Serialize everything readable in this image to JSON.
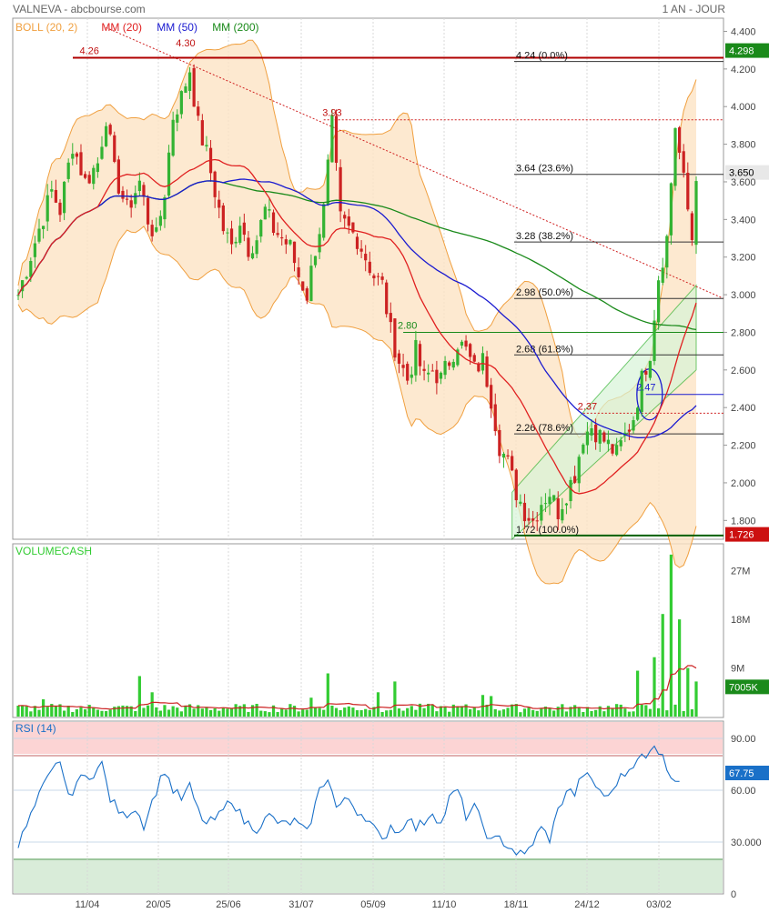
{
  "header": {
    "title": "VALNEVA - abcbourse.com",
    "period": "1 AN - JOUR"
  },
  "colors": {
    "up": "#33b333",
    "down": "#cc2222",
    "mm20": "#e02020",
    "mm50": "#1a1ad0",
    "mm200": "#1a8a1a",
    "boll": "#f0a040",
    "bollFill": "#fde3c4",
    "rsi": "#1a70c8",
    "volume": "#33cc33"
  },
  "chart_data": [
    {
      "type": "candlestick",
      "panel": "price",
      "legend": [
        {
          "label": "BOLL (20, 2)",
          "color": "#f0a040"
        },
        {
          "label": "MM (20)",
          "color": "#e02020"
        },
        {
          "label": "MM (50)",
          "color": "#1a1ad0"
        },
        {
          "label": "MM (200)",
          "color": "#1a8a1a"
        }
      ],
      "ylim": [
        1.7,
        4.47
      ],
      "yticks": [
        "4.400",
        "4.200",
        "4.000",
        "3.800",
        "3.600",
        "3.400",
        "3.200",
        "3.000",
        "2.800",
        "2.600",
        "2.400",
        "2.200",
        "2.000",
        "1.800"
      ],
      "xticks": [
        "11/04",
        "20/05",
        "25/06",
        "31/07",
        "05/09",
        "11/10",
        "18/11",
        "24/12",
        "03/02"
      ],
      "last_price": "3.650",
      "high_badge": "4.298",
      "low_badge": "1.726",
      "price_path": [
        [
          0,
          3.0
        ],
        [
          5,
          3.35
        ],
        [
          8,
          3.55
        ],
        [
          10,
          3.45
        ],
        [
          13,
          3.8
        ],
        [
          16,
          3.6
        ],
        [
          19,
          3.7
        ],
        [
          21,
          3.95
        ],
        [
          23,
          3.65
        ],
        [
          26,
          3.45
        ],
        [
          29,
          3.6
        ],
        [
          31,
          3.4
        ],
        [
          33,
          3.3
        ],
        [
          35,
          3.55
        ],
        [
          37,
          3.95
        ],
        [
          39,
          4.05
        ],
        [
          41,
          4.2
        ],
        [
          43,
          3.9
        ],
        [
          45,
          3.75
        ],
        [
          47,
          3.55
        ],
        [
          49,
          3.35
        ],
        [
          51,
          3.25
        ],
        [
          53,
          3.4
        ],
        [
          55,
          3.25
        ],
        [
          57,
          3.3
        ],
        [
          59,
          3.45
        ],
        [
          61,
          3.35
        ],
        [
          63,
          3.3
        ],
        [
          65,
          3.25
        ],
        [
          67,
          3.1
        ],
        [
          69,
          3.0
        ],
        [
          71,
          3.25
        ],
        [
          73,
          3.45
        ],
        [
          75,
          3.9
        ],
        [
          77,
          3.4
        ],
        [
          79,
          3.35
        ],
        [
          81,
          3.3
        ],
        [
          83,
          3.2
        ],
        [
          85,
          3.1
        ],
        [
          87,
          3.05
        ],
        [
          89,
          2.8
        ],
        [
          91,
          2.65
        ],
        [
          93,
          2.55
        ],
        [
          95,
          2.7
        ],
        [
          97,
          2.55
        ],
        [
          99,
          2.6
        ],
        [
          101,
          2.55
        ],
        [
          103,
          2.65
        ],
        [
          105,
          2.75
        ],
        [
          107,
          2.7
        ],
        [
          109,
          2.6
        ],
        [
          111,
          2.65
        ],
        [
          113,
          2.45
        ],
        [
          115,
          2.2
        ],
        [
          117,
          2.1
        ],
        [
          119,
          1.95
        ],
        [
          121,
          1.85
        ],
        [
          123,
          1.8
        ],
        [
          125,
          1.9
        ],
        [
          127,
          1.95
        ],
        [
          129,
          1.85
        ],
        [
          131,
          1.95
        ],
        [
          133,
          2.05
        ],
        [
          135,
          2.25
        ],
        [
          137,
          2.3
        ],
        [
          139,
          2.25
        ],
        [
          141,
          2.2
        ],
        [
          143,
          2.15
        ],
        [
          145,
          2.25
        ],
        [
          147,
          2.35
        ],
        [
          149,
          2.55
        ],
        [
          151,
          2.7
        ],
        [
          153,
          3.1
        ],
        [
          155,
          3.3
        ],
        [
          157,
          3.9
        ],
        [
          159,
          3.6
        ],
        [
          161,
          3.3
        ],
        [
          162,
          3.65
        ]
      ],
      "overlay_labels": [
        {
          "text": "4.26",
          "value": 4.26,
          "at": 17
        },
        {
          "text": "4.30",
          "value": 4.3,
          "at": 40
        },
        {
          "text": "3.93",
          "value": 3.93,
          "at": 75
        },
        {
          "text": "2.80",
          "value": 2.8,
          "at": 93
        },
        {
          "text": "2.37",
          "value": 2.37,
          "at": 136
        },
        {
          "text": "2.47",
          "value": 2.47,
          "at": 150
        }
      ],
      "fibonacci": [
        {
          "label": "4.24  (0.0%)",
          "value": 4.24
        },
        {
          "label": "3.64  (23.6%)",
          "value": 3.64
        },
        {
          "label": "3.28  (38.2%)",
          "value": 3.28
        },
        {
          "label": "2.98  (50.0%)",
          "value": 2.98
        },
        {
          "label": "2.68  (61.8%)",
          "value": 2.68
        },
        {
          "label": "2.26  (78.6%)",
          "value": 2.26
        },
        {
          "label": "1.72  (100.0%)",
          "value": 1.72
        }
      ]
    },
    {
      "type": "bar",
      "panel": "volume",
      "legend": [
        {
          "label": "VOLUMECASH",
          "color": "#33cc33"
        }
      ],
      "ylim": [
        0,
        32
      ],
      "yticks": [
        "27M",
        "18M",
        "9M"
      ],
      "last_badge": "7005K",
      "peaks": [
        [
          6,
          3.2
        ],
        [
          29,
          7.5
        ],
        [
          32,
          4.5
        ],
        [
          70,
          3.5
        ],
        [
          74,
          8.0
        ],
        [
          86,
          4.5
        ],
        [
          90,
          6.5
        ],
        [
          111,
          4.0
        ],
        [
          113,
          3.8
        ],
        [
          148,
          8.5
        ],
        [
          152,
          11
        ],
        [
          154,
          19
        ],
        [
          156,
          30
        ],
        [
          158,
          18
        ],
        [
          160,
          9
        ],
        [
          162,
          6.5
        ]
      ]
    },
    {
      "type": "line",
      "panel": "rsi",
      "legend": [
        {
          "label": "RSI (14)",
          "color": "#1a70c8"
        }
      ],
      "ylim": [
        0,
        100
      ],
      "yticks": [
        "90.00",
        "60.00",
        "30.000",
        "0"
      ],
      "overbought": 80,
      "oversold": 20,
      "last_badge": "67.75",
      "rsi_path": [
        [
          0,
          28
        ],
        [
          3,
          45
        ],
        [
          6,
          62
        ],
        [
          8,
          70
        ],
        [
          10,
          78
        ],
        [
          12,
          55
        ],
        [
          14,
          65
        ],
        [
          18,
          70
        ],
        [
          20,
          75
        ],
        [
          22,
          55
        ],
        [
          25,
          45
        ],
        [
          28,
          50
        ],
        [
          30,
          40
        ],
        [
          33,
          60
        ],
        [
          35,
          72
        ],
        [
          37,
          60
        ],
        [
          39,
          55
        ],
        [
          41,
          62
        ],
        [
          43,
          48
        ],
        [
          45,
          40
        ],
        [
          48,
          45
        ],
        [
          51,
          55
        ],
        [
          54,
          42
        ],
        [
          57,
          38
        ],
        [
          60,
          45
        ],
        [
          63,
          40
        ],
        [
          66,
          42
        ],
        [
          69,
          35
        ],
        [
          72,
          60
        ],
        [
          74,
          68
        ],
        [
          76,
          50
        ],
        [
          79,
          55
        ],
        [
          81,
          48
        ],
        [
          83,
          45
        ],
        [
          85,
          38
        ],
        [
          87,
          30
        ],
        [
          89,
          40
        ],
        [
          91,
          35
        ],
        [
          93,
          45
        ],
        [
          95,
          38
        ],
        [
          97,
          42
        ],
        [
          99,
          48
        ],
        [
          101,
          40
        ],
        [
          103,
          55
        ],
        [
          105,
          60
        ],
        [
          107,
          45
        ],
        [
          109,
          50
        ],
        [
          111,
          40
        ],
        [
          113,
          30
        ],
        [
          115,
          32
        ],
        [
          117,
          28
        ],
        [
          119,
          24
        ],
        [
          121,
          22
        ],
        [
          123,
          30
        ],
        [
          125,
          38
        ],
        [
          127,
          32
        ],
        [
          129,
          48
        ],
        [
          131,
          60
        ],
        [
          133,
          58
        ],
        [
          135,
          70
        ],
        [
          137,
          65
        ],
        [
          139,
          60
        ],
        [
          141,
          55
        ],
        [
          143,
          65
        ],
        [
          146,
          72
        ],
        [
          148,
          80
        ],
        [
          150,
          78
        ],
        [
          152,
          85
        ],
        [
          154,
          82
        ],
        [
          156,
          65
        ],
        [
          158,
          68
        ]
      ]
    }
  ]
}
